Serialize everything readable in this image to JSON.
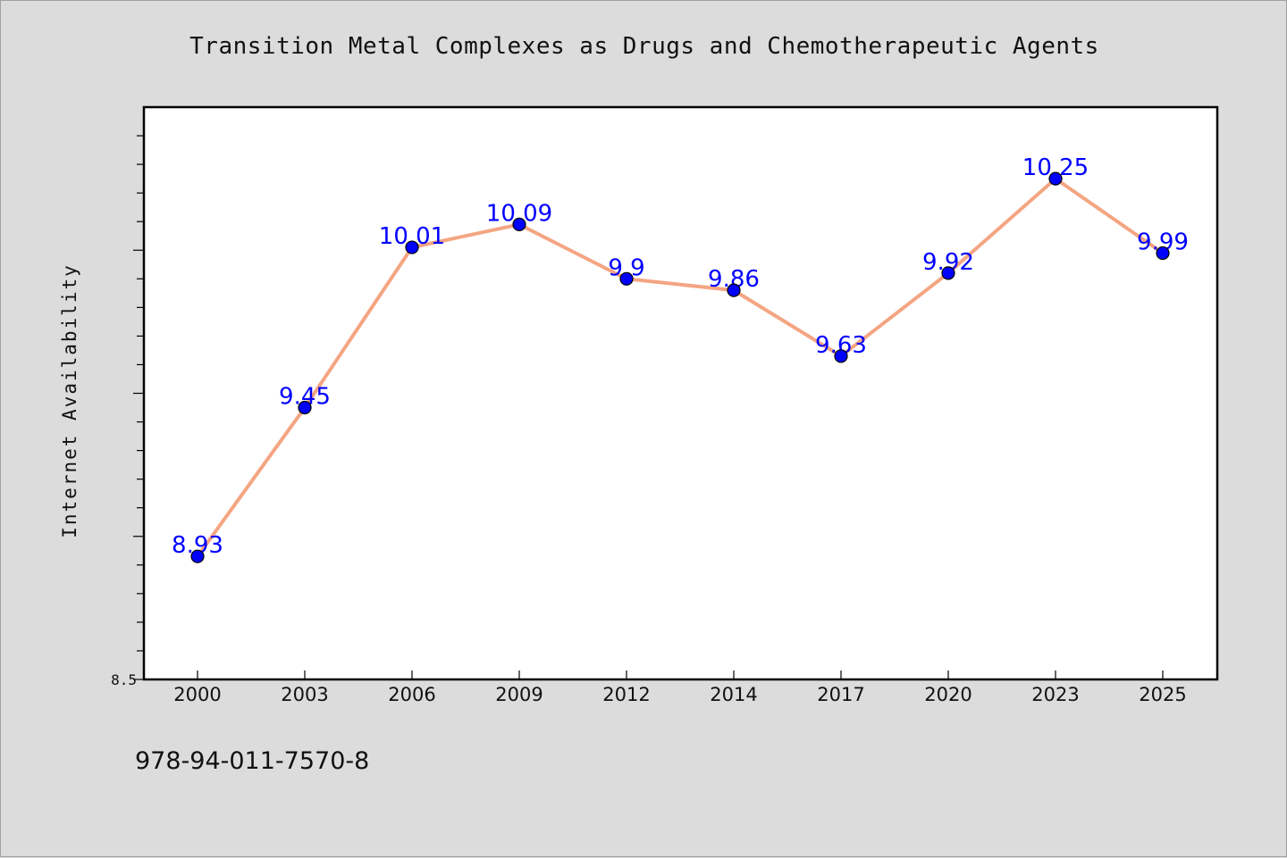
{
  "chart_data": {
    "type": "line",
    "title": "Transition Metal Complexes as Drugs and Chemotherapeutic Agents",
    "ylabel": "Internet Availability",
    "xlabel": "",
    "categories": [
      "2000",
      "2003",
      "2006",
      "2009",
      "2012",
      "2014",
      "2017",
      "2020",
      "2023",
      "2025"
    ],
    "series": [
      {
        "values": [
          8.93,
          9.45,
          10.01,
          10.09,
          9.9,
          9.86,
          9.63,
          9.92,
          10.25,
          9.99
        ],
        "data_labels": [
          "8.93",
          "9.45",
          "10.01",
          "10.09",
          "9.9",
          "9.86",
          "9.63",
          "9.92",
          "10.25",
          "9.99"
        ]
      }
    ],
    "ylim": [
      8.5,
      10.5
    ],
    "y_tick_labels": [
      "8.5"
    ],
    "grid": false,
    "line_color": "#f4a582",
    "marker_color": "#0000ff",
    "data_label_color": "#0000ff"
  },
  "footer": {
    "isbn": "978-94-011-7570-8"
  }
}
